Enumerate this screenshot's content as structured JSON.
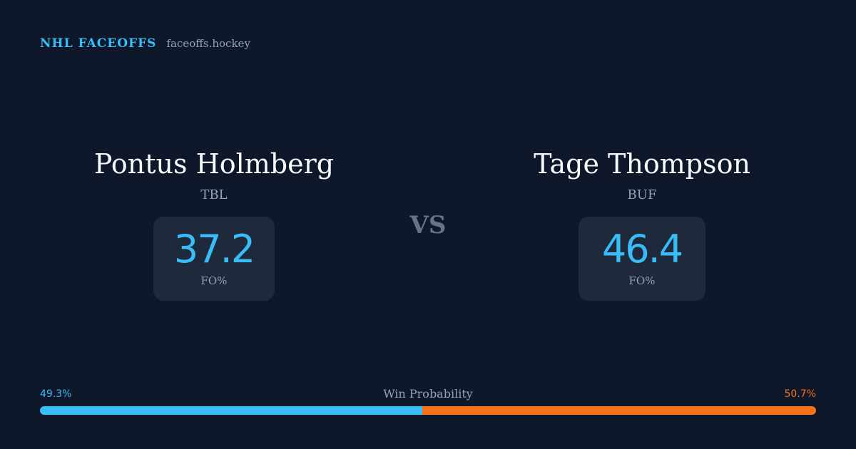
{
  "brand": {
    "title": "NHL FACEOFFS",
    "domain": "faceoffs.hockey"
  },
  "players": {
    "left": {
      "name": "Pontus Holmberg",
      "team": "TBL",
      "stat_value": "37.2",
      "stat_label": "FO%"
    },
    "right": {
      "name": "Tage Thompson",
      "team": "BUF",
      "stat_value": "46.4",
      "stat_label": "FO%"
    }
  },
  "versus": "VS",
  "win_probability": {
    "title": "Win Probability",
    "left_label": "49.3%",
    "right_label": "50.7%",
    "left_value": 49.3,
    "right_value": 50.7
  },
  "colors": {
    "background": "#0f172a",
    "card": "#1e293b",
    "accent_left": "#38bdf8",
    "accent_right": "#f97316",
    "muted": "#94a3b8",
    "vs": "#64748b"
  }
}
